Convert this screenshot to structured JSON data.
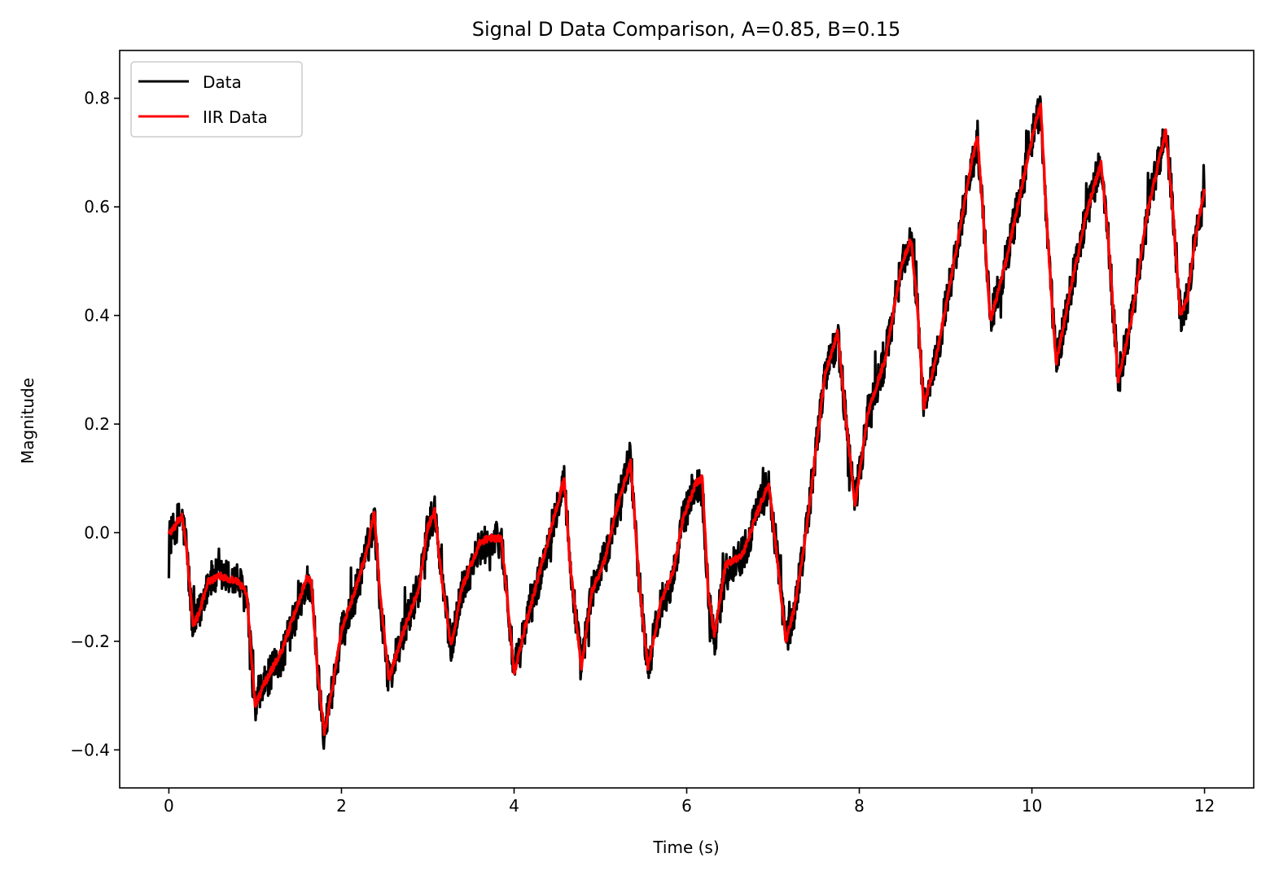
{
  "chart_data": {
    "type": "line",
    "title": "Signal D Data Comparison, A=0.85, B=0.15",
    "xlabel": "Time (s)",
    "ylabel": "Magnitude",
    "xlim": [
      -0.57,
      12.57
    ],
    "ylim": [
      -0.47,
      0.888
    ],
    "x_ticks": [
      0,
      2,
      4,
      6,
      8,
      10,
      12
    ],
    "x_tick_labels": [
      "0",
      "2",
      "4",
      "6",
      "8",
      "10",
      "12"
    ],
    "y_ticks": [
      -0.4,
      -0.2,
      0.0,
      0.2,
      0.4,
      0.6,
      0.8
    ],
    "y_tick_labels": [
      "−0.4",
      "−0.2",
      "0.0",
      "0.2",
      "0.4",
      "0.6",
      "0.8"
    ],
    "grid": false,
    "legend_position": "top-left",
    "series": [
      {
        "name": "Data",
        "color": "#000000",
        "noise_amplitude": 0.035,
        "points": [
          [
            0.0,
            -0.01
          ],
          [
            0.05,
            0.0
          ],
          [
            0.1,
            0.02
          ],
          [
            0.15,
            0.03
          ],
          [
            0.2,
            -0.02
          ],
          [
            0.28,
            -0.18
          ],
          [
            0.35,
            -0.15
          ],
          [
            0.45,
            -0.09
          ],
          [
            0.6,
            -0.08
          ],
          [
            0.8,
            -0.09
          ],
          [
            0.9,
            -0.12
          ],
          [
            1.0,
            -0.33
          ],
          [
            1.1,
            -0.28
          ],
          [
            1.3,
            -0.23
          ],
          [
            1.5,
            -0.14
          ],
          [
            1.6,
            -0.09
          ],
          [
            1.65,
            -0.1
          ],
          [
            1.72,
            -0.25
          ],
          [
            1.8,
            -0.37
          ],
          [
            1.9,
            -0.28
          ],
          [
            2.0,
            -0.19
          ],
          [
            2.15,
            -0.12
          ],
          [
            2.3,
            -0.03
          ],
          [
            2.38,
            0.03
          ],
          [
            2.45,
            -0.13
          ],
          [
            2.55,
            -0.27
          ],
          [
            2.7,
            -0.19
          ],
          [
            2.9,
            -0.1
          ],
          [
            3.0,
            0.0
          ],
          [
            3.08,
            0.04
          ],
          [
            3.15,
            -0.07
          ],
          [
            3.27,
            -0.21
          ],
          [
            3.4,
            -0.1
          ],
          [
            3.6,
            -0.03
          ],
          [
            3.7,
            -0.02
          ],
          [
            3.85,
            -0.01
          ],
          [
            3.92,
            -0.12
          ],
          [
            4.0,
            -0.26
          ],
          [
            4.15,
            -0.16
          ],
          [
            4.3,
            -0.08
          ],
          [
            4.45,
            0.02
          ],
          [
            4.58,
            0.1
          ],
          [
            4.65,
            -0.06
          ],
          [
            4.78,
            -0.25
          ],
          [
            4.9,
            -0.11
          ],
          [
            5.05,
            -0.05
          ],
          [
            5.2,
            0.05
          ],
          [
            5.35,
            0.14
          ],
          [
            5.45,
            -0.09
          ],
          [
            5.55,
            -0.25
          ],
          [
            5.7,
            -0.13
          ],
          [
            5.85,
            -0.08
          ],
          [
            5.95,
            0.02
          ],
          [
            6.1,
            0.09
          ],
          [
            6.18,
            0.08
          ],
          [
            6.25,
            -0.11
          ],
          [
            6.32,
            -0.2
          ],
          [
            6.45,
            -0.07
          ],
          [
            6.65,
            -0.04
          ],
          [
            6.8,
            0.03
          ],
          [
            6.95,
            0.09
          ],
          [
            7.05,
            -0.05
          ],
          [
            7.15,
            -0.2
          ],
          [
            7.25,
            -0.14
          ],
          [
            7.4,
            0.02
          ],
          [
            7.6,
            0.29
          ],
          [
            7.75,
            0.36
          ],
          [
            7.85,
            0.2
          ],
          [
            7.95,
            0.05
          ],
          [
            8.1,
            0.22
          ],
          [
            8.3,
            0.32
          ],
          [
            8.5,
            0.5
          ],
          [
            8.6,
            0.54
          ],
          [
            8.67,
            0.42
          ],
          [
            8.75,
            0.23
          ],
          [
            8.9,
            0.33
          ],
          [
            9.1,
            0.5
          ],
          [
            9.3,
            0.68
          ],
          [
            9.37,
            0.71
          ],
          [
            9.45,
            0.55
          ],
          [
            9.52,
            0.39
          ],
          [
            9.7,
            0.5
          ],
          [
            9.9,
            0.65
          ],
          [
            10.05,
            0.76
          ],
          [
            10.1,
            0.78
          ],
          [
            10.18,
            0.55
          ],
          [
            10.28,
            0.31
          ],
          [
            10.45,
            0.45
          ],
          [
            10.65,
            0.6
          ],
          [
            10.8,
            0.68
          ],
          [
            10.88,
            0.55
          ],
          [
            11.0,
            0.28
          ],
          [
            11.15,
            0.39
          ],
          [
            11.35,
            0.6
          ],
          [
            11.55,
            0.74
          ],
          [
            11.62,
            0.62
          ],
          [
            11.72,
            0.4
          ],
          [
            11.8,
            0.43
          ],
          [
            11.9,
            0.55
          ],
          [
            12.0,
            0.62
          ]
        ]
      },
      {
        "name": "IIR Data",
        "color": "#ff0000",
        "noise_amplitude": 0.006,
        "points": [
          [
            0.0,
            0.0
          ],
          [
            0.05,
            0.005
          ],
          [
            0.1,
            0.02
          ],
          [
            0.15,
            0.03
          ],
          [
            0.2,
            -0.02
          ],
          [
            0.28,
            -0.17
          ],
          [
            0.35,
            -0.15
          ],
          [
            0.45,
            -0.09
          ],
          [
            0.6,
            -0.08
          ],
          [
            0.8,
            -0.09
          ],
          [
            0.9,
            -0.11
          ],
          [
            1.0,
            -0.32
          ],
          [
            1.1,
            -0.28
          ],
          [
            1.3,
            -0.22
          ],
          [
            1.5,
            -0.13
          ],
          [
            1.6,
            -0.08
          ],
          [
            1.65,
            -0.09
          ],
          [
            1.72,
            -0.25
          ],
          [
            1.8,
            -0.37
          ],
          [
            1.9,
            -0.28
          ],
          [
            2.0,
            -0.18
          ],
          [
            2.15,
            -0.11
          ],
          [
            2.3,
            -0.03
          ],
          [
            2.38,
            0.04
          ],
          [
            2.45,
            -0.12
          ],
          [
            2.55,
            -0.27
          ],
          [
            2.7,
            -0.19
          ],
          [
            2.9,
            -0.1
          ],
          [
            3.0,
            0.01
          ],
          [
            3.08,
            0.04
          ],
          [
            3.15,
            -0.07
          ],
          [
            3.27,
            -0.21
          ],
          [
            3.4,
            -0.1
          ],
          [
            3.6,
            -0.02
          ],
          [
            3.7,
            -0.01
          ],
          [
            3.85,
            -0.01
          ],
          [
            3.92,
            -0.12
          ],
          [
            4.0,
            -0.26
          ],
          [
            4.15,
            -0.16
          ],
          [
            4.3,
            -0.07
          ],
          [
            4.45,
            0.02
          ],
          [
            4.58,
            0.1
          ],
          [
            4.65,
            -0.06
          ],
          [
            4.78,
            -0.25
          ],
          [
            4.9,
            -0.11
          ],
          [
            5.05,
            -0.05
          ],
          [
            5.2,
            0.05
          ],
          [
            5.35,
            0.13
          ],
          [
            5.45,
            -0.09
          ],
          [
            5.55,
            -0.25
          ],
          [
            5.7,
            -0.13
          ],
          [
            5.85,
            -0.07
          ],
          [
            5.95,
            0.02
          ],
          [
            6.1,
            0.09
          ],
          [
            6.18,
            0.1
          ],
          [
            6.25,
            -0.11
          ],
          [
            6.32,
            -0.19
          ],
          [
            6.45,
            -0.06
          ],
          [
            6.65,
            -0.04
          ],
          [
            6.8,
            0.03
          ],
          [
            6.95,
            0.09
          ],
          [
            7.05,
            -0.05
          ],
          [
            7.15,
            -0.2
          ],
          [
            7.25,
            -0.14
          ],
          [
            7.4,
            0.02
          ],
          [
            7.6,
            0.29
          ],
          [
            7.75,
            0.37
          ],
          [
            7.85,
            0.2
          ],
          [
            7.95,
            0.05
          ],
          [
            8.1,
            0.22
          ],
          [
            8.3,
            0.32
          ],
          [
            8.5,
            0.5
          ],
          [
            8.6,
            0.54
          ],
          [
            8.67,
            0.42
          ],
          [
            8.75,
            0.23
          ],
          [
            8.9,
            0.33
          ],
          [
            9.1,
            0.5
          ],
          [
            9.3,
            0.68
          ],
          [
            9.37,
            0.73
          ],
          [
            9.45,
            0.55
          ],
          [
            9.52,
            0.39
          ],
          [
            9.7,
            0.5
          ],
          [
            9.9,
            0.65
          ],
          [
            10.05,
            0.76
          ],
          [
            10.1,
            0.79
          ],
          [
            10.18,
            0.55
          ],
          [
            10.28,
            0.31
          ],
          [
            10.45,
            0.45
          ],
          [
            10.65,
            0.6
          ],
          [
            10.8,
            0.68
          ],
          [
            10.88,
            0.55
          ],
          [
            11.0,
            0.28
          ],
          [
            11.15,
            0.39
          ],
          [
            11.35,
            0.6
          ],
          [
            11.55,
            0.74
          ],
          [
            11.62,
            0.62
          ],
          [
            11.72,
            0.4
          ],
          [
            11.8,
            0.43
          ],
          [
            11.9,
            0.55
          ],
          [
            12.0,
            0.63
          ]
        ]
      }
    ]
  }
}
